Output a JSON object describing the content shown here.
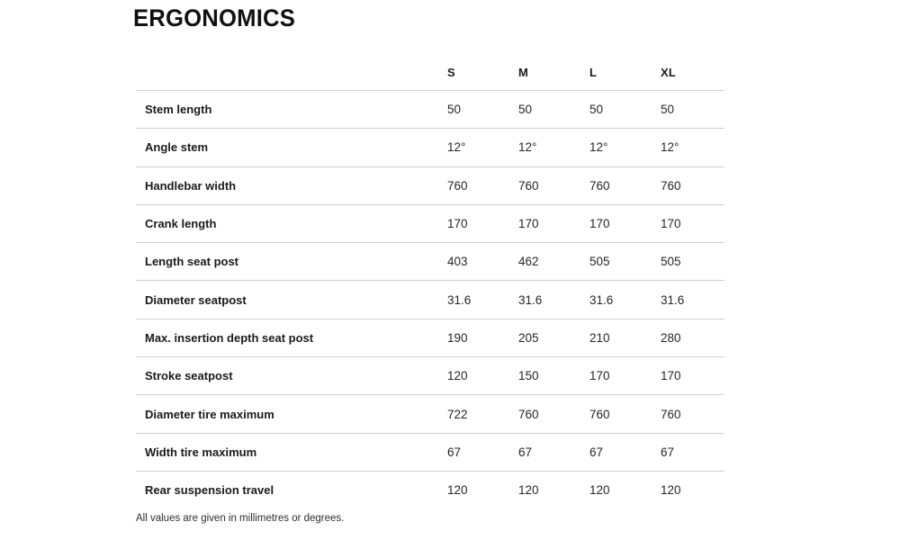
{
  "chart_data": {
    "type": "table",
    "title": "ERGONOMICS",
    "size_columns": [
      "S",
      "M",
      "L",
      "XL"
    ],
    "rows": [
      {
        "label": "Stem length",
        "values": [
          "50",
          "50",
          "50",
          "50"
        ]
      },
      {
        "label": "Angle stem",
        "values": [
          "12°",
          "12°",
          "12°",
          "12°"
        ]
      },
      {
        "label": "Handlebar width",
        "values": [
          "760",
          "760",
          "760",
          "760"
        ]
      },
      {
        "label": "Crank length",
        "values": [
          "170",
          "170",
          "170",
          "170"
        ]
      },
      {
        "label": "Length seat post",
        "values": [
          "403",
          "462",
          "505",
          "505"
        ]
      },
      {
        "label": "Diameter seatpost",
        "values": [
          "31.6",
          "31.6",
          "31.6",
          "31.6"
        ]
      },
      {
        "label": "Max. insertion depth seat post",
        "values": [
          "190",
          "205",
          "210",
          "280"
        ]
      },
      {
        "label": "Stroke seatpost",
        "values": [
          "120",
          "150",
          "170",
          "170"
        ]
      },
      {
        "label": "Diameter tire maximum",
        "values": [
          "722",
          "760",
          "760",
          "760"
        ]
      },
      {
        "label": "Width tire maximum",
        "values": [
          "67",
          "67",
          "67",
          "67"
        ]
      },
      {
        "label": "Rear suspension travel",
        "values": [
          "120",
          "120",
          "120",
          "120"
        ]
      }
    ],
    "footnote": "All values are given in millimetres or degrees."
  },
  "style": {
    "text_color": "#1a1a1a",
    "line_color": "#cfcfcf",
    "background": "#ffffff"
  }
}
